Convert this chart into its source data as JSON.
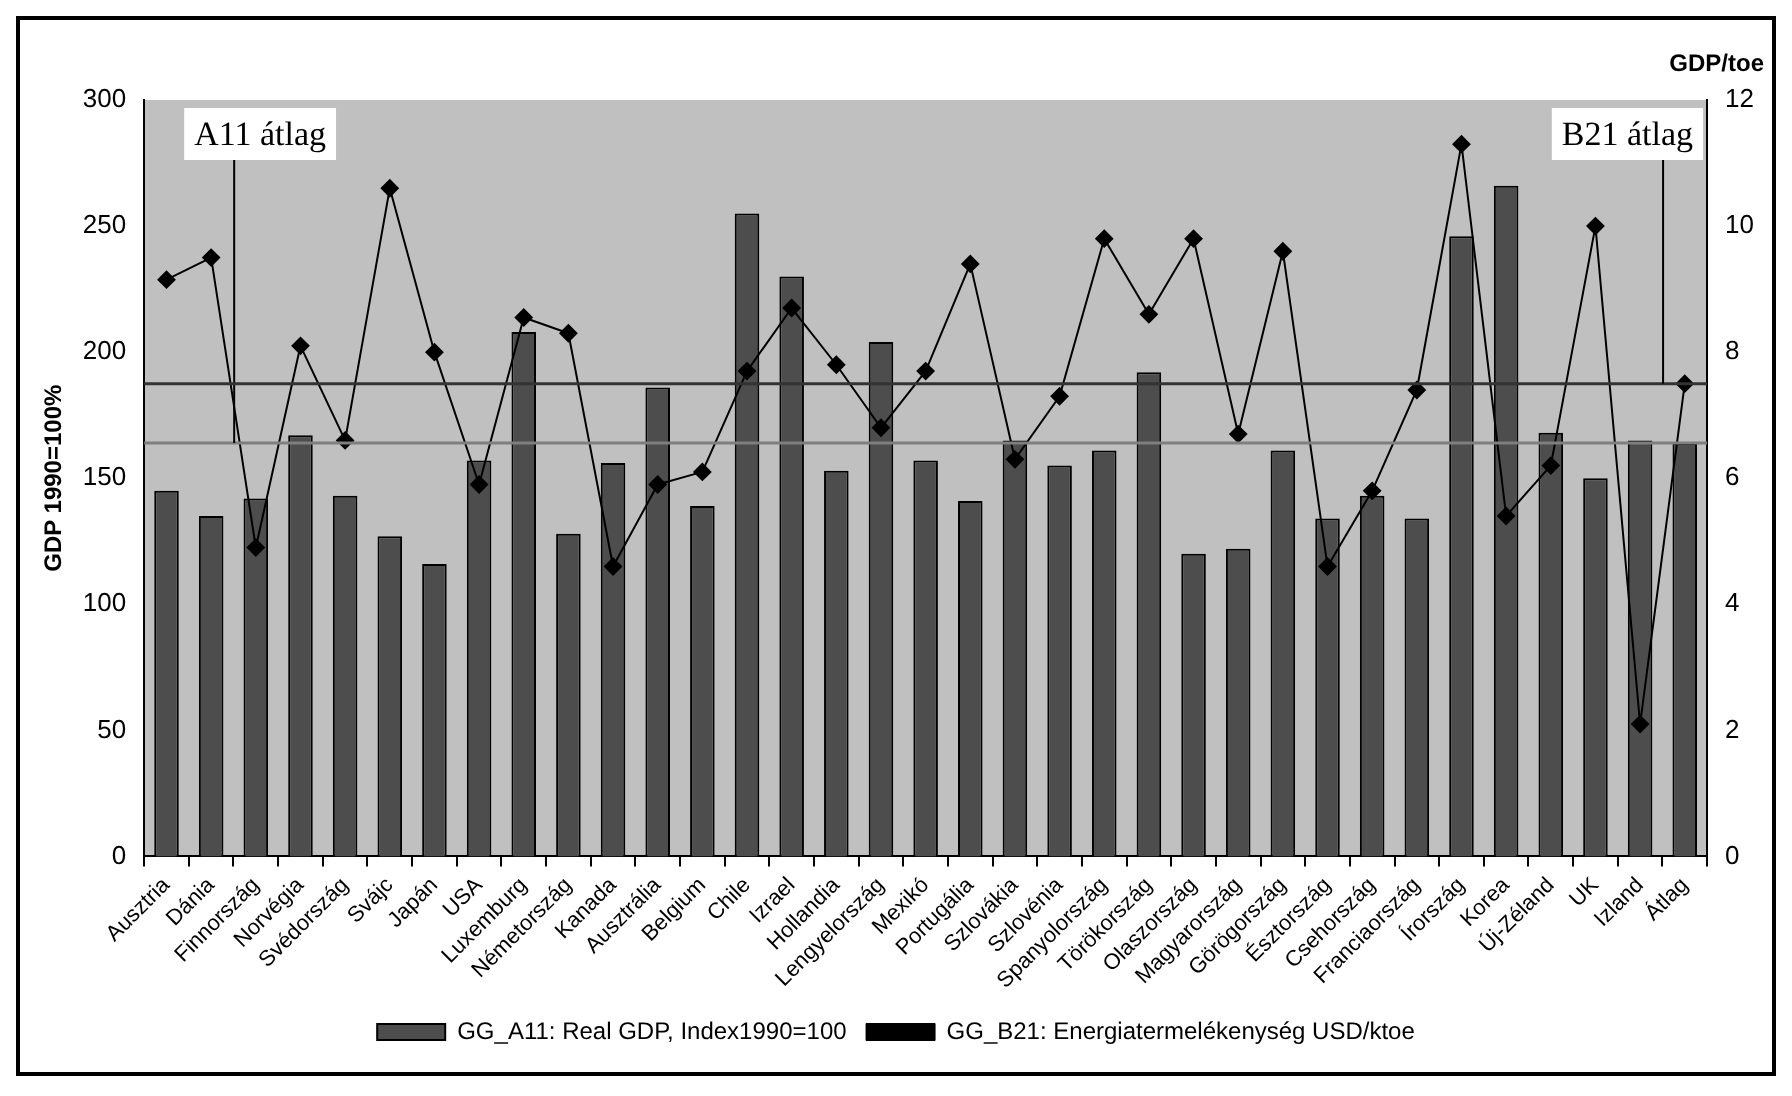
{
  "chart_data": {
    "type": "bar",
    "categories": [
      "Ausztria",
      "Dánia",
      "Finnország",
      "Norvégia",
      "Svédország",
      "Svájc",
      "Japán",
      "USA",
      "Luxemburg",
      "Németország",
      "Kanada",
      "Ausztrália",
      "Belgium",
      "Chile",
      "Izrael",
      "Hollandia",
      "Lengyelország",
      "Mexikó",
      "Portugália",
      "Szlovákia",
      "Szlovénia",
      "Spanyolország",
      "Törökország",
      "Olaszország",
      "Magyarország",
      "Görögország",
      "Észtország",
      "Csehország",
      "Franciaország",
      "Írország",
      "Korea",
      "Új-Zéland",
      "UK",
      "Izland",
      "Átlag"
    ],
    "series": [
      {
        "name": "GG_A11: Real GDP, Index1990=100",
        "color": "#4d4d4d",
        "values": [
          145,
          135,
          142,
          167,
          143,
          127,
          116,
          157,
          208,
          128,
          156,
          186,
          139,
          255,
          230,
          153,
          204,
          157,
          141,
          165,
          155,
          161,
          192,
          120,
          122,
          161,
          134,
          143,
          134,
          246,
          266,
          168,
          150,
          165,
          164
        ]
      },
      {
        "name": "GG_B21: Energiatermelékenység USD/ktoe",
        "type": "line",
        "axis": "y2",
        "color": "#000000",
        "marker": "diamond",
        "values": [
          9.15,
          9.5,
          4.9,
          8.1,
          6.6,
          10.6,
          8.0,
          5.9,
          8.55,
          8.3,
          4.6,
          5.9,
          6.1,
          7.7,
          8.7,
          7.8,
          6.8,
          7.7,
          9.4,
          6.3,
          7.3,
          9.8,
          8.6,
          9.8,
          6.7,
          9.6,
          4.6,
          5.8,
          7.4,
          11.3,
          5.4,
          6.2,
          10.0,
          2.1,
          7.5
        ]
      }
    ],
    "ylabel": "GDP 1990=100%",
    "y2label": "GDP/toe",
    "ylim": [
      0,
      300
    ],
    "yticks": [
      0,
      50,
      100,
      150,
      200,
      250,
      300
    ],
    "y2lim": [
      0,
      12
    ],
    "y2ticks": [
      0,
      2,
      4,
      6,
      8,
      10,
      12
    ],
    "ref_lines": [
      {
        "axis": "y",
        "value": 164,
        "label": "A11 átlag",
        "color": "#7f7f7f"
      },
      {
        "axis": "y2",
        "value": 7.5,
        "label": "B21 átlag",
        "color": "#333333"
      }
    ],
    "legend": "bottom"
  }
}
